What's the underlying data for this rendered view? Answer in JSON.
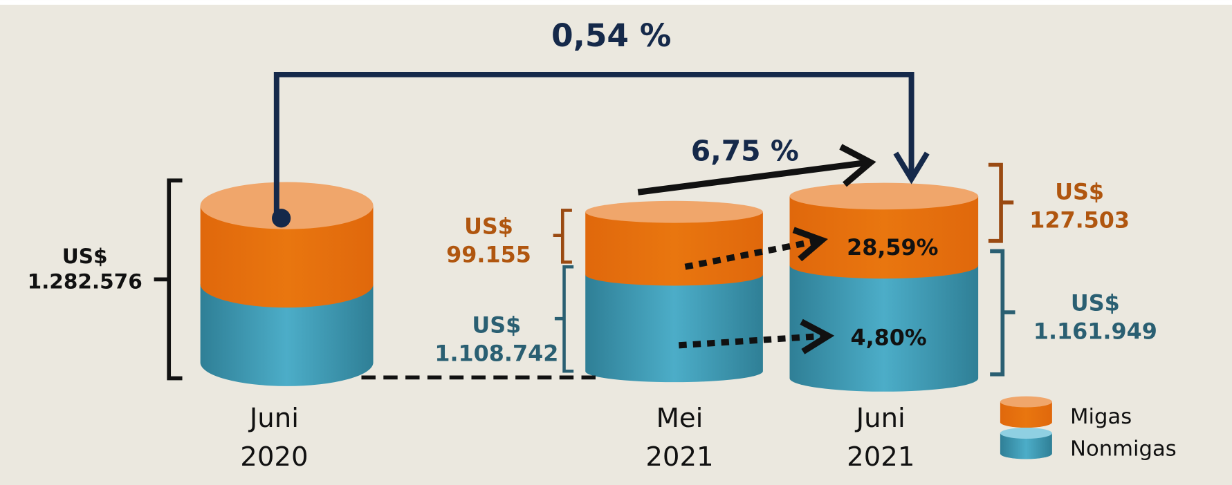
{
  "growth_labels": {
    "year_on_year": "0,54 %",
    "month_on_month": "6,75 %"
  },
  "columns": [
    {
      "period": [
        "Juni",
        "2020"
      ],
      "total": [
        "US$",
        "1.282.576"
      ]
    },
    {
      "period": [
        "Mei",
        "2021"
      ],
      "migas": [
        "US$",
        "99.155"
      ],
      "nonmigas": [
        "US$",
        "1.108.742"
      ]
    },
    {
      "period": [
        "Juni",
        "2021"
      ],
      "migas": [
        "US$",
        "127.503"
      ],
      "nonmigas": [
        "US$",
        "1.161.949"
      ],
      "migas_growth": "28,59%",
      "nonmigas_growth": "4,80%"
    }
  ],
  "legend": [
    "Migas",
    "Nonmigas"
  ]
}
